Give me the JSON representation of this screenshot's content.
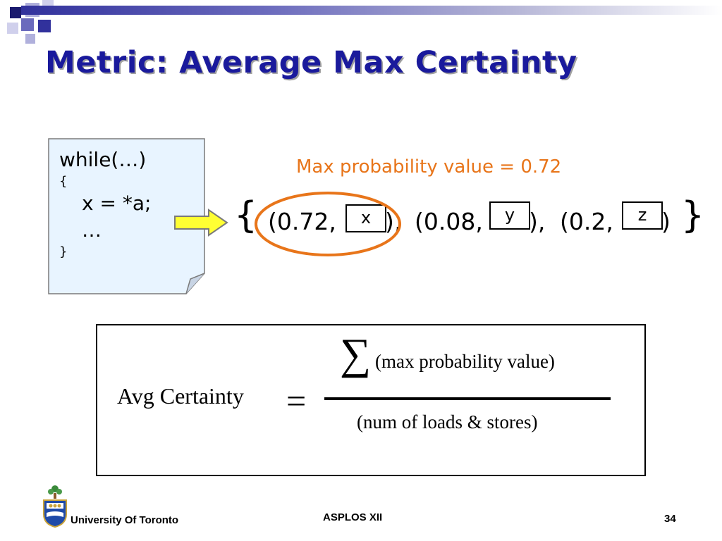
{
  "slide": {
    "title": "Metric: Average Max Certainty",
    "colors": {
      "title": "#1a1a9c",
      "accent_orange": "#e8751a",
      "note_fill": "#e8f4ff",
      "arrow_fill": "#ffff33"
    }
  },
  "code_note": {
    "lines": [
      "while(…)",
      "{",
      "x = *a;",
      "…",
      "}"
    ]
  },
  "annotation": {
    "max_prob_label": "Max probability value = 0.72"
  },
  "tuples": {
    "open_brace": "{",
    "close_brace": "}",
    "t1_prefix": "(0.72,",
    "t1_var": "x",
    "t1_suffix": "),",
    "t2_prefix": "(0.08,",
    "t2_var": "y",
    "t2_suffix": "),",
    "t3_prefix": "(0.2,",
    "t3_var": "z",
    "t3_suffix": ")"
  },
  "formula": {
    "label": "Avg Certainty",
    "equals": "=",
    "sigma": "∑",
    "numerator": "(max probability value)",
    "denominator": "(num of loads & stores)"
  },
  "footer": {
    "university": "University Of Toronto",
    "conference": "ASPLOS XII",
    "page_number": "34",
    "logo_icon": "university-crest-icon"
  }
}
